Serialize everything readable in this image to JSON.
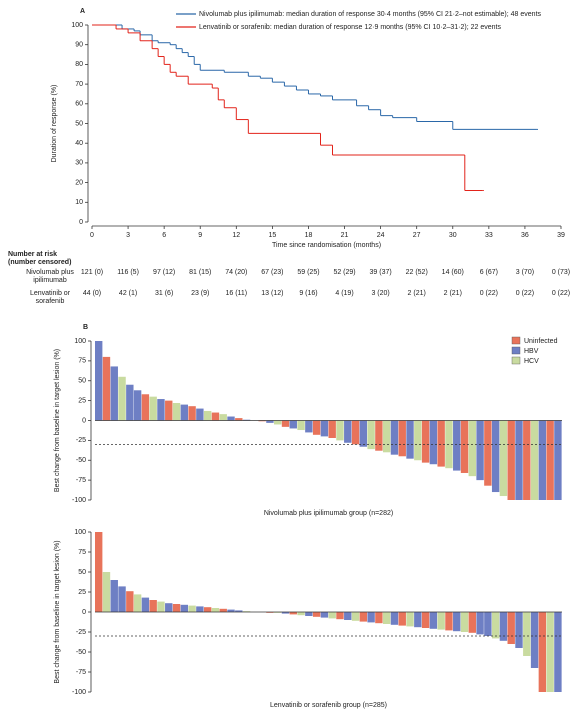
{
  "chart_data": [
    {
      "type": "km",
      "panel": "A",
      "xlabel": "Time since randomisation (months)",
      "ylabel": "Duration of response (%)",
      "xlim": [
        0,
        39
      ],
      "xticks": [
        0,
        3,
        6,
        9,
        12,
        15,
        18,
        21,
        24,
        27,
        30,
        33,
        36,
        39
      ],
      "ylim": [
        0,
        100
      ],
      "yticks": [
        0,
        10,
        20,
        30,
        40,
        50,
        60,
        70,
        80,
        90,
        100
      ],
      "series": [
        {
          "name": "Nivolumab plus ipilimumab: median duration of response 30·4 months (95% CI 21·2–not estimable); 48 events",
          "color": "#2a67a8",
          "x": [
            0,
            2.5,
            3.5,
            4,
            5,
            5.5,
            6.5,
            7,
            7.5,
            8,
            8.5,
            9,
            11,
            13,
            14,
            15,
            16,
            17,
            18,
            19,
            20,
            22,
            23,
            24,
            25,
            27,
            30,
            37
          ],
          "values": [
            100,
            98,
            97,
            95,
            92,
            91,
            90,
            88,
            86,
            84,
            80,
            77,
            76,
            74,
            73,
            71,
            69,
            67,
            65,
            64,
            62,
            59,
            57,
            54,
            53,
            51,
            47,
            47
          ]
        },
        {
          "name": "Lenvatinib or sorafenib: median duration of response 12·9 months (95% CI 10·2–31·2); 22 events",
          "color": "#e2231a",
          "x": [
            0,
            2,
            3,
            4,
            5,
            5.5,
            6,
            6.5,
            7,
            8,
            10,
            10.5,
            11,
            12,
            13,
            19,
            20,
            31,
            32.5
          ],
          "values": [
            100,
            98,
            96,
            92,
            88,
            84,
            80,
            76,
            74,
            70,
            68,
            62,
            58,
            52,
            45,
            39,
            34,
            16,
            16
          ]
        }
      ],
      "risk_table": {
        "title": [
          "Number at risk",
          "(number censored)"
        ],
        "rows": [
          {
            "label": [
              "Nivolumab plus",
              "ipilimumab"
            ],
            "values": [
              "121 (0)",
              "116 (5)",
              "97 (12)",
              "81 (15)",
              "74 (20)",
              "67 (23)",
              "59 (25)",
              "52 (29)",
              "39 (37)",
              "22 (52)",
              "14 (60)",
              "6 (67)",
              "3 (70)",
              "0 (73)"
            ]
          },
          {
            "label": [
              "Lenvatinib or",
              "sorafenib"
            ],
            "values": [
              "44 (0)",
              "42 (1)",
              "31 (6)",
              "23 (9)",
              "16 (11)",
              "13 (12)",
              "9 (16)",
              "4 (19)",
              "3 (20)",
              "2 (21)",
              "2 (21)",
              "0 (22)",
              "0 (22)",
              "0 (22)"
            ]
          }
        ]
      }
    },
    {
      "type": "waterfall",
      "panel": "B",
      "xlabel": "Nivolumab plus ipilimumab group (n=282)",
      "ylabel": "Best change from baseline in target lesion (%)",
      "ylim": [
        -100,
        100
      ],
      "yticks": [
        100,
        75,
        50,
        25,
        0,
        -25,
        -50,
        -75,
        -100
      ],
      "threshold": -30,
      "legend": [
        {
          "name": "Uninfected",
          "color": "#e8735a"
        },
        {
          "name": "HBV",
          "color": "#6e7fc4"
        },
        {
          "name": "HCV",
          "color": "#c9dba0"
        }
      ],
      "values": [
        100,
        80,
        68,
        55,
        45,
        38,
        33,
        30,
        27,
        25,
        22,
        20,
        18,
        15,
        12,
        10,
        8,
        5,
        3,
        1,
        0,
        -1,
        -3,
        -5,
        -8,
        -10,
        -12,
        -15,
        -18,
        -20,
        -22,
        -25,
        -28,
        -30,
        -33,
        -36,
        -38,
        -40,
        -43,
        -45,
        -48,
        -50,
        -53,
        -55,
        -58,
        -60,
        -63,
        -66,
        -70,
        -75,
        -82,
        -90,
        -95,
        -100,
        -100,
        -100,
        -100,
        -100,
        -100,
        -100
      ],
      "groups": [
        1,
        0,
        1,
        2,
        1,
        1,
        0,
        2,
        1,
        0,
        2,
        1,
        0,
        1,
        2,
        0,
        2,
        1,
        0,
        1,
        2,
        0,
        1,
        2,
        0,
        1,
        2,
        1,
        0,
        1,
        0,
        2,
        1,
        0,
        1,
        2,
        0,
        2,
        1,
        0,
        1,
        2,
        0,
        1,
        0,
        2,
        1,
        0,
        2,
        1,
        0,
        1,
        2,
        0,
        1,
        0,
        2,
        1,
        0,
        1
      ]
    },
    {
      "type": "waterfall",
      "xlabel": "Lenvatinib or sorafenib group (n=285)",
      "ylabel": "Best change from baseline in target lesion (%)",
      "ylim": [
        -100,
        100
      ],
      "yticks": [
        100,
        75,
        50,
        25,
        0,
        -25,
        -50,
        -75,
        -100
      ],
      "threshold": -30,
      "legend_colors": [
        "#e8735a",
        "#6e7fc4",
        "#c9dba0"
      ],
      "values": [
        100,
        50,
        40,
        32,
        26,
        22,
        18,
        15,
        13,
        11,
        10,
        9,
        8,
        7,
        6,
        5,
        4,
        3,
        2,
        1,
        0,
        0,
        -1,
        -1,
        -2,
        -3,
        -4,
        -5,
        -6,
        -7,
        -8,
        -9,
        -10,
        -11,
        -12,
        -13,
        -14,
        -15,
        -16,
        -17,
        -18,
        -19,
        -20,
        -21,
        -22,
        -23,
        -24,
        -25,
        -26,
        -28,
        -30,
        -33,
        -36,
        -40,
        -45,
        -55,
        -70,
        -100,
        -100,
        -100
      ],
      "groups": [
        0,
        2,
        1,
        1,
        0,
        2,
        1,
        0,
        2,
        1,
        0,
        1,
        2,
        1,
        0,
        2,
        0,
        1,
        1,
        2,
        0,
        1,
        0,
        2,
        1,
        0,
        2,
        1,
        0,
        1,
        2,
        0,
        1,
        2,
        0,
        1,
        0,
        2,
        1,
        0,
        2,
        1,
        0,
        1,
        2,
        0,
        1,
        2,
        0,
        1,
        1,
        2,
        1,
        0,
        1,
        2,
        1,
        0,
        2,
        1
      ]
    }
  ]
}
